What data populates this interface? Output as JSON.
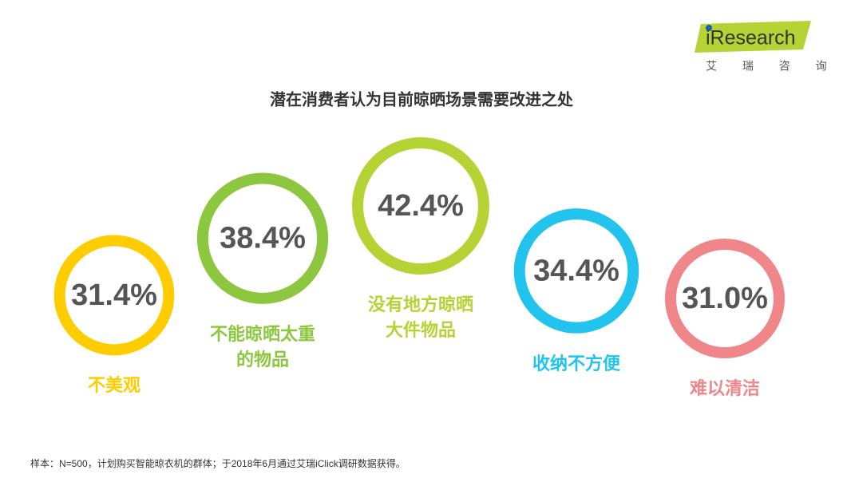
{
  "logo": {
    "name": "iResearch",
    "subtitle": "艾 瑞 咨 询"
  },
  "chart_data": {
    "type": "bubble",
    "title": "潜在消费者认为目前晾晒场景需要改进之处",
    "categories": [
      "不美观",
      "不能晾晒太重\n的物品",
      "没有地方晾晒\n大件物品",
      "收纳不方便",
      "难以清洁"
    ],
    "values": [
      31.4,
      38.4,
      42.4,
      34.4,
      31.0
    ],
    "value_labels": [
      "31.4%",
      "38.4%",
      "42.4%",
      "34.4%",
      "31.0%"
    ],
    "colors": [
      "#ffcc00",
      "#8dc63f",
      "#b5d334",
      "#22c4ee",
      "#f0868a"
    ]
  },
  "note": "样本：N=500，计划购买智能晾衣机的群体；于2018年6月通过艾瑞iClick调研数据获得。"
}
